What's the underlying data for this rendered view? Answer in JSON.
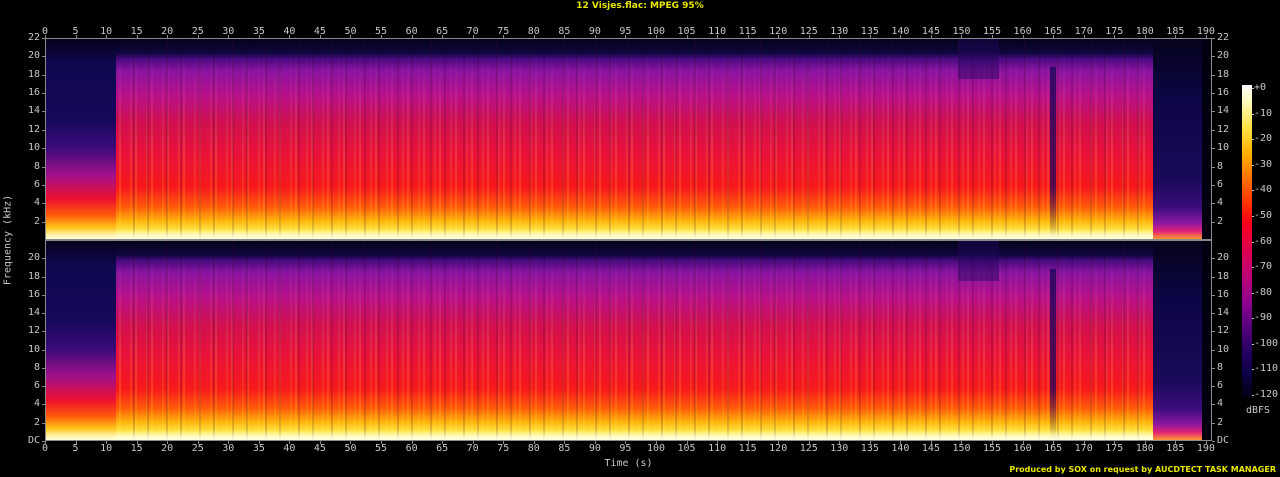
{
  "title": "12 Visjes.flac: MPEG 95%",
  "credit": "Produced by SOX on request by AUCDTECT TASK MANAGER",
  "chart_data": {
    "type": "heatmap",
    "subtype": "spectrogram",
    "title": "12 Visjes.flac: MPEG 95%",
    "xlabel": "Time (s)",
    "ylabel": "Frequency (kHz)",
    "x_ticks": [
      0,
      5,
      10,
      15,
      20,
      25,
      30,
      35,
      40,
      45,
      50,
      55,
      60,
      65,
      70,
      75,
      80,
      85,
      90,
      95,
      100,
      105,
      110,
      115,
      120,
      125,
      130,
      135,
      140,
      145,
      150,
      155,
      160,
      165,
      170,
      175,
      180,
      185,
      190
    ],
    "xlim": [
      0,
      191
    ],
    "y_ticks_top": [
      "2",
      "4",
      "6",
      "8",
      "10",
      "12",
      "14",
      "16",
      "18",
      "20",
      "22"
    ],
    "y_ticks_bottom": [
      "DC",
      "2",
      "4",
      "6",
      "8",
      "10",
      "12",
      "14",
      "16",
      "18",
      "20"
    ],
    "ylim_khz": [
      0,
      22
    ],
    "channels": [
      "Channel 1 (top)",
      "Channel 2 (bottom)"
    ],
    "colorbar": {
      "label": "dBFS",
      "ticks": [
        "+0",
        "-10",
        "-20",
        "-30",
        "-40",
        "-50",
        "-60",
        "-70",
        "-80",
        "-90",
        "-100",
        "-110",
        "-120"
      ],
      "range": [
        -120,
        0
      ]
    },
    "observations": {
      "quiet_intro_seconds": [
        0,
        11.5
      ],
      "main_content_seconds": [
        11.5,
        182
      ],
      "fade_out_seconds": [
        182,
        190
      ],
      "frequency_cutoff_khz": 21,
      "intro_cutoff_khz": 19.5
    }
  },
  "axes": {
    "x_title": "Time (s)",
    "y_title": "Frequency (kHz)",
    "cb_unit": "dBFS"
  }
}
